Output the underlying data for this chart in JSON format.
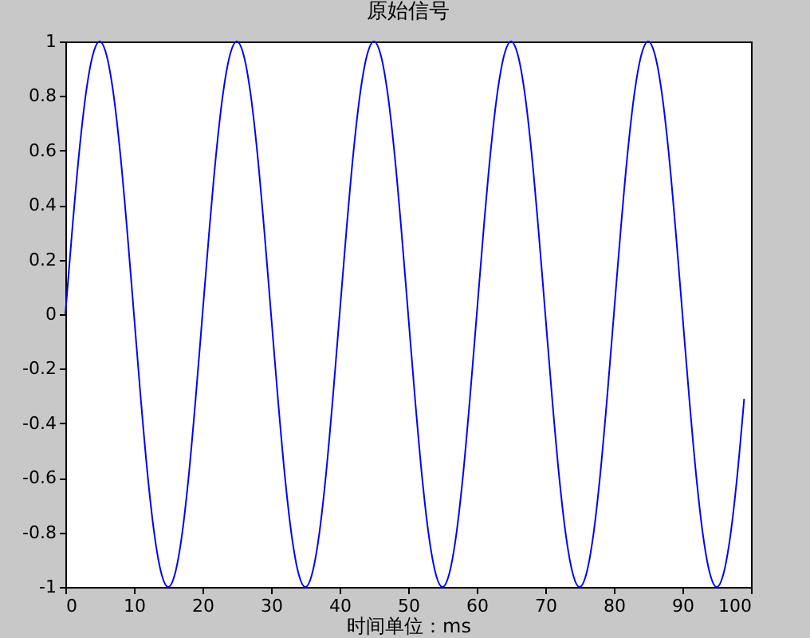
{
  "chart_data": {
    "type": "line",
    "title": "原始信号",
    "xlabel": "时间单位：ms",
    "x": [
      0,
      1,
      2,
      3,
      4,
      5,
      6,
      7,
      8,
      9,
      10,
      11,
      12,
      13,
      14,
      15,
      16,
      17,
      18,
      19,
      20,
      21,
      22,
      23,
      24,
      25,
      26,
      27,
      28,
      29,
      30,
      31,
      32,
      33,
      34,
      35,
      36,
      37,
      38,
      39,
      40,
      41,
      42,
      43,
      44,
      45,
      46,
      47,
      48,
      49,
      50,
      51,
      52,
      53,
      54,
      55,
      56,
      57,
      58,
      59,
      60,
      61,
      62,
      63,
      64,
      65,
      66,
      67,
      68,
      69,
      70,
      71,
      72,
      73,
      74,
      75,
      76,
      77,
      78,
      79,
      80,
      81,
      82,
      83,
      84,
      85,
      86,
      87,
      88,
      89,
      90,
      91,
      92,
      93,
      94,
      95,
      96,
      97,
      98,
      99
    ],
    "series": [
      {
        "color": "#0000ff",
        "values": [
          0,
          0.31,
          0.59,
          0.81,
          0.95,
          1,
          0.95,
          0.81,
          0.59,
          0.31,
          0,
          -0.31,
          -0.59,
          -0.81,
          -0.95,
          -1,
          -0.95,
          -0.81,
          -0.59,
          -0.31,
          0,
          0.31,
          0.59,
          0.81,
          0.95,
          1,
          0.95,
          0.81,
          0.59,
          0.31,
          0,
          -0.31,
          -0.59,
          -0.81,
          -0.95,
          -1,
          -0.95,
          -0.81,
          -0.59,
          -0.31,
          0,
          0.31,
          0.59,
          0.81,
          0.95,
          1,
          0.95,
          0.81,
          0.59,
          0.31,
          0,
          -0.31,
          -0.59,
          -0.81,
          -0.95,
          -1,
          -0.95,
          -0.81,
          -0.59,
          -0.31,
          0,
          0.31,
          0.59,
          0.81,
          0.95,
          1,
          0.95,
          0.81,
          0.59,
          0.31,
          0,
          -0.31,
          -0.59,
          -0.81,
          -0.95,
          -1,
          -0.95,
          -0.81,
          -0.59,
          -0.31,
          0,
          0.31,
          0.59,
          0.81,
          0.95,
          1,
          0.95,
          0.81,
          0.59,
          0.31,
          0,
          -0.31,
          -0.59,
          -0.81,
          -0.95,
          -1,
          -0.95,
          -0.81,
          -0.59,
          -0.31
        ]
      }
    ],
    "xlim": [
      0,
      100
    ],
    "xticks": [
      0,
      10,
      20,
      30,
      40,
      50,
      60,
      70,
      80,
      90,
      100
    ],
    "ylim": [
      -1,
      1
    ],
    "yticks": [
      -1,
      -0.8,
      -0.6,
      -0.4,
      -0.2,
      0,
      0.2,
      0.4,
      0.6,
      0.8,
      1
    ],
    "grid": false,
    "marker": "none",
    "line_style": "solid"
  }
}
